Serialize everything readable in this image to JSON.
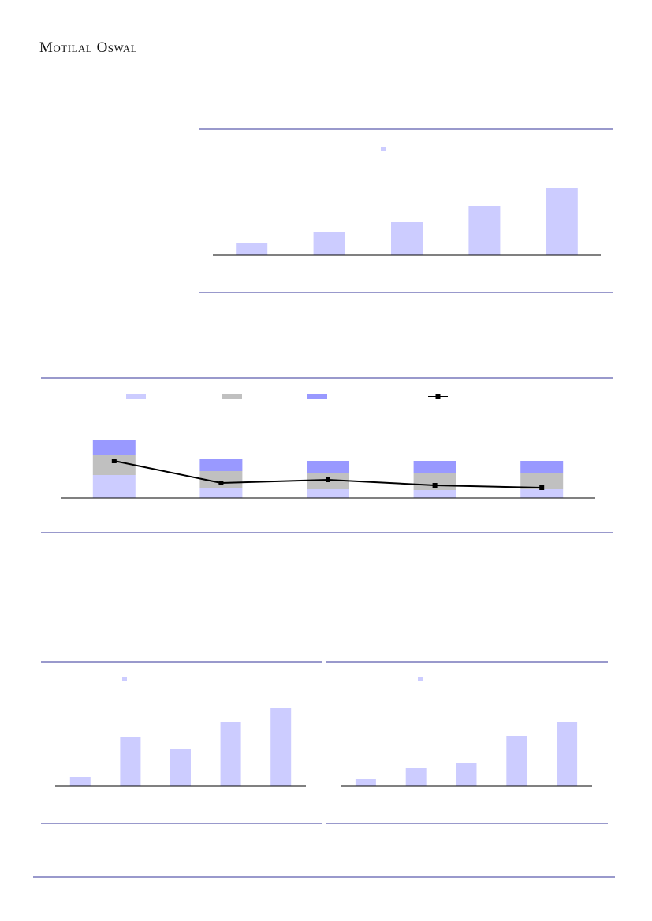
{
  "header": {
    "title": "Motilal Oswal"
  },
  "chart_data": [
    {
      "type": "bar",
      "color": "#ccccff",
      "values": [
        15,
        30,
        42,
        63,
        85
      ],
      "ylim": [
        0,
        100
      ]
    },
    {
      "type": "bar",
      "stacked": true,
      "ylim": [
        0,
        100
      ],
      "series": [
        {
          "color": "#ccccff",
          "values": [
            29,
            12,
            11,
            10,
            11
          ]
        },
        {
          "color": "#c0c0c0",
          "values": [
            25,
            22,
            20,
            21,
            20
          ]
        },
        {
          "color": "#9999ff",
          "values": [
            20,
            16,
            16,
            16,
            16
          ]
        },
        {
          "type": "line",
          "color": "#000000",
          "values": [
            47,
            19,
            23,
            16,
            13
          ]
        }
      ]
    },
    {
      "type": "bar",
      "color": "#ccccff",
      "values": [
        12,
        62,
        47,
        81,
        99
      ],
      "ylim": [
        0,
        100
      ]
    },
    {
      "type": "bar",
      "color": "#ccccff",
      "values": [
        9,
        23,
        29,
        64,
        82
      ],
      "ylim": [
        0,
        100
      ]
    }
  ]
}
